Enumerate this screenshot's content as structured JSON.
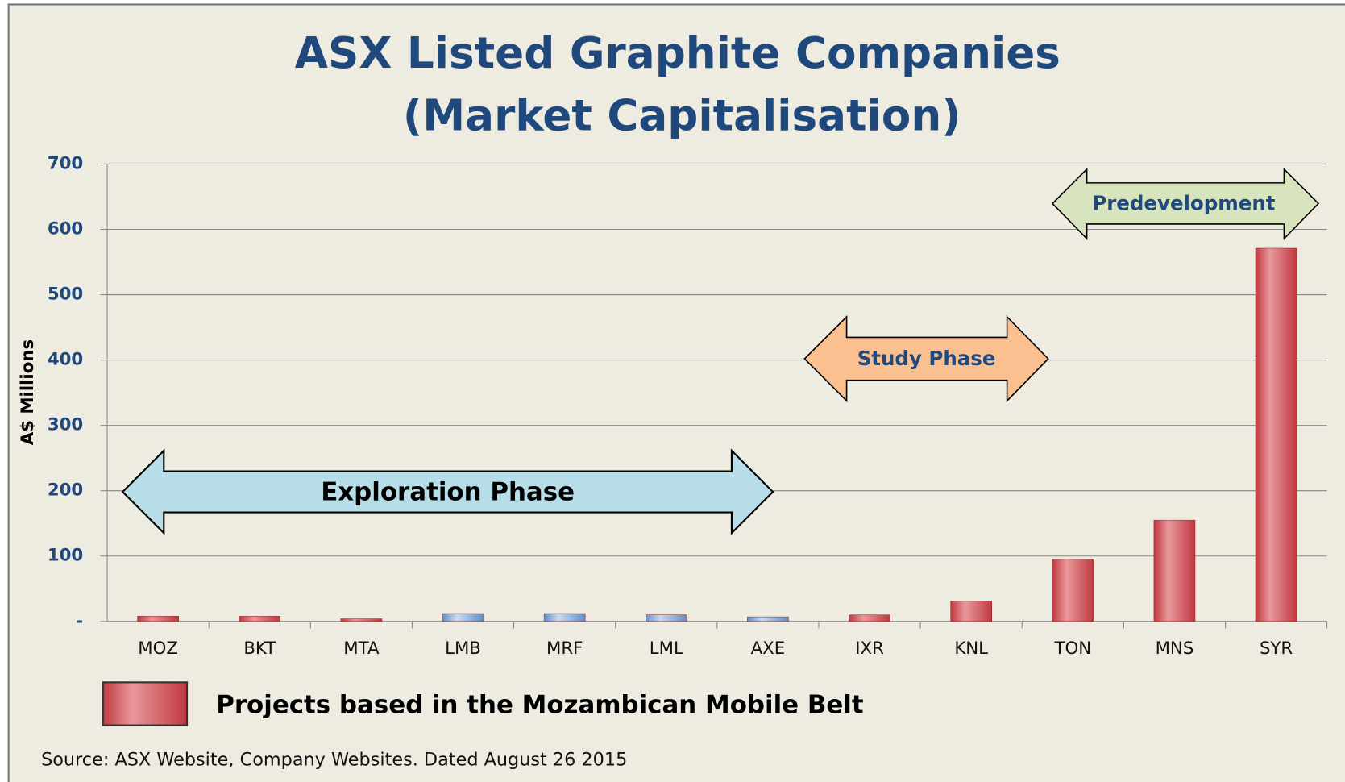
{
  "chart_data": {
    "type": "bar",
    "title": [
      "ASX Listed Graphite Companies",
      "(Market Capitalisation)"
    ],
    "ylabel": "A$ Millions",
    "categories": [
      "MOZ",
      "BKT",
      "MTA",
      "LMB",
      "MRF",
      "LML",
      "AXE",
      "IXR",
      "KNL",
      "TON",
      "MNS",
      "SYR"
    ],
    "values": [
      8,
      8,
      4,
      12,
      12,
      10,
      7,
      10,
      31,
      95,
      155,
      571
    ],
    "colors": [
      "#d9656a",
      "#d9656a",
      "#d9656a",
      "#8db4e2",
      "#8db4e2",
      "#8db4e2",
      "#8db4e2",
      "#d9656a",
      "#d9656a",
      "#d9656a",
      "#d9656a",
      "#d9656a"
    ],
    "ylim": [
      0,
      700
    ],
    "yticks": [
      {
        "value": 0,
        "label": "-"
      },
      100,
      200,
      300,
      400,
      500,
      600,
      700
    ],
    "grid": true,
    "annotations": [
      "Exploration Phase",
      "Study Phase",
      "Predevelopment"
    ],
    "legend": {
      "label": "Projects based in the Mozambican Mobile Belt",
      "color": "#d9656a"
    },
    "source": "Source: ASX Website, Company Websites.  Dated August 26 2015"
  }
}
